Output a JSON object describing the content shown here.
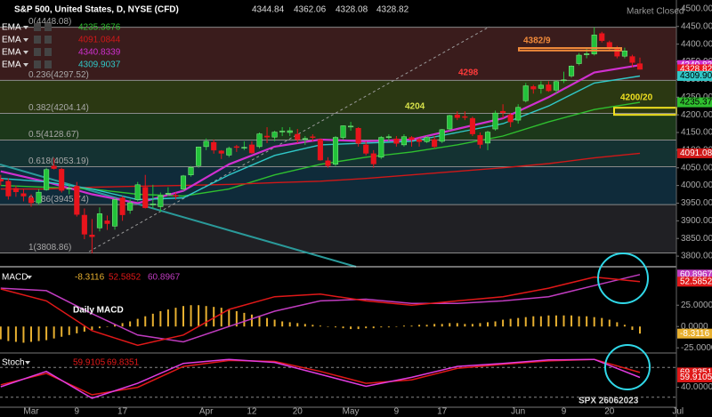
{
  "chart_data": [
    {
      "type": "candlestick",
      "title": "S&P 500, United States, D, NYSE (CFD)",
      "status": "Market Closed",
      "categories": [
        null,
        null,
        null,
        null,
        "Mar",
        null,
        null,
        null,
        null,
        null,
        "9",
        null,
        null,
        null,
        null,
        null,
        "17",
        null,
        null,
        null,
        null,
        null,
        null,
        null,
        null,
        null,
        null,
        "Apr",
        null,
        null,
        null,
        null,
        null,
        "12",
        null,
        null,
        null,
        null,
        null,
        "20",
        null,
        null,
        null,
        null,
        null,
        null,
        "May",
        null,
        null,
        null,
        null,
        null,
        "9",
        null,
        null,
        null,
        null,
        null,
        "17",
        null,
        null,
        null,
        null,
        null,
        null,
        null,
        null,
        null,
        "Jun",
        null,
        null,
        null,
        null,
        null,
        "9",
        null,
        null,
        null,
        null,
        null,
        "20",
        null,
        null,
        null,
        null,
        null,
        null,
        null,
        null,
        "Jul"
      ],
      "open": [
        4018,
        4012,
        3992,
        3977,
        3965,
        3951,
        3988,
        4055,
        4046,
        3990,
        3998,
        3916,
        3860,
        3880,
        3900,
        3885,
        3965,
        3930,
        3960,
        3995,
        3945,
        3940,
        3975,
        3972,
        3990,
        4030,
        4056,
        4110,
        4122,
        4098,
        4086,
        4110,
        4106,
        4115,
        4110,
        4140,
        4137,
        4152,
        4150,
        4145,
        4132,
        4138,
        4130,
        4070,
        4060,
        4136,
        4166,
        4162,
        4115,
        4090,
        4080,
        4136,
        4132,
        4115,
        4136,
        4130,
        4124,
        4130,
        4125,
        4160,
        4200,
        4195,
        4190,
        4142,
        4120,
        4160,
        4210,
        4200,
        4185,
        4240,
        4280,
        4275,
        4285,
        4270,
        4298,
        4310,
        4345,
        4370,
        4372,
        4430,
        4405,
        4390,
        4366,
        4365,
        4344.84,
        null,
        null,
        null,
        null,
        null
      ],
      "high": [
        4030,
        4020,
        4000,
        3990,
        3975,
        3990,
        4050,
        4078,
        4050,
        4005,
        4010,
        3935,
        3905,
        3938,
        3915,
        3965,
        3970,
        3960,
        4010,
        4030,
        4002,
        3980,
        3995,
        3980,
        4030,
        4055,
        4110,
        4133,
        4130,
        4100,
        4110,
        4115,
        4125,
        4125,
        4150,
        4165,
        4155,
        4165,
        4165,
        4160,
        4140,
        4145,
        4133,
        4080,
        4140,
        4170,
        4180,
        4165,
        4125,
        4100,
        4140,
        4145,
        4140,
        4145,
        4140,
        4135,
        4140,
        4140,
        4160,
        4200,
        4210,
        4210,
        4195,
        4150,
        4155,
        4212,
        4230,
        4205,
        4230,
        4290,
        4285,
        4295,
        4295,
        4298,
        4322,
        4340,
        4375,
        4390,
        4448,
        4435,
        4410,
        4395,
        4390,
        4370,
        4362.06,
        null,
        null,
        null,
        null,
        null
      ],
      "low": [
        4000,
        3960,
        3968,
        3955,
        3940,
        3945,
        3985,
        4045,
        3980,
        3975,
        3912,
        3848,
        3808,
        3870,
        3874,
        3875,
        3900,
        3920,
        3955,
        3935,
        3935,
        3925,
        3970,
        3960,
        3985,
        4025,
        4050,
        4100,
        4090,
        4075,
        4080,
        4095,
        4100,
        4090,
        4105,
        4120,
        4125,
        4140,
        4140,
        4120,
        4115,
        4125,
        4070,
        4050,
        4055,
        4130,
        4155,
        4110,
        4085,
        4050,
        4075,
        4125,
        4110,
        4110,
        4110,
        4110,
        4120,
        4105,
        4120,
        4155,
        4185,
        4185,
        4140,
        4105,
        4100,
        4155,
        4190,
        4165,
        4175,
        4235,
        4260,
        4260,
        4265,
        4260,
        4290,
        4305,
        4340,
        4360,
        4368,
        4405,
        4380,
        4360,
        4360,
        4335,
        4328.08,
        null,
        null,
        null,
        null,
        null
      ],
      "close": [
        4012,
        3970,
        3982,
        3970,
        3951,
        3981,
        4045,
        4048,
        3986,
        3992,
        3918,
        3862,
        3855,
        3920,
        3892,
        3960,
        3917,
        3951,
        4002,
        3937,
        3948,
        3971,
        3978,
        3971,
        4027,
        4051,
        4109,
        4125,
        4100,
        4091,
        4105,
        4109,
        4108,
        4092,
        4146,
        4137,
        4151,
        4154,
        4155,
        4130,
        4133,
        4137,
        4072,
        4056,
        4136,
        4169,
        4168,
        4119,
        4091,
        4061,
        4136,
        4138,
        4119,
        4138,
        4130,
        4124,
        4136,
        4110,
        4158,
        4198,
        4192,
        4193,
        4146,
        4116,
        4151,
        4205,
        4206,
        4180,
        4221,
        4282,
        4273,
        4284,
        4268,
        4294,
        4299,
        4338,
        4369,
        4373,
        4426,
        4410,
        4389,
        4366,
        4381,
        4348,
        4328.82,
        null,
        null,
        null,
        null,
        null
      ],
      "up_color": "#22c23a",
      "down_color": "#e8141c",
      "ylim": [
        3770,
        4525
      ],
      "yticks": [
        {
          "value": 4500,
          "label": "4500.00"
        },
        {
          "value": 4450,
          "label": "4450.00"
        },
        {
          "value": 4400,
          "label": "4400.00"
        },
        {
          "value": 4350,
          "label": "4350.00"
        },
        {
          "value": 4300,
          "label": "4300.00"
        },
        {
          "value": 4250,
          "label": "4250.00"
        },
        {
          "value": 4200,
          "label": "4200.00"
        },
        {
          "value": 4150,
          "label": "4150.00"
        },
        {
          "value": 4100,
          "label": "4100.00"
        },
        {
          "value": 4050,
          "label": "4050.00"
        },
        {
          "value": 4000,
          "label": "4000.00"
        },
        {
          "value": 3950,
          "label": "3950.00"
        },
        {
          "value": 3900,
          "label": "3900.00"
        },
        {
          "value": 3850,
          "label": "3850.00"
        },
        {
          "value": 3800,
          "label": "3800.00"
        }
      ],
      "series": [
        {
          "name": "EMA",
          "color": "#2fbf2f",
          "x": [
            0,
            6,
            12,
            18,
            24,
            30,
            36,
            42,
            48,
            54,
            60,
            66,
            72,
            78,
            84
          ],
          "values": [
            4000,
            3995,
            3990,
            3975,
            3970,
            3990,
            4030,
            4060,
            4080,
            4095,
            4115,
            4140,
            4180,
            4215,
            4235.3676
          ]
        },
        {
          "name": "EMA",
          "color": "#d01818",
          "x": [
            0,
            6,
            12,
            18,
            24,
            30,
            36,
            42,
            48,
            54,
            60,
            66,
            72,
            78,
            84
          ],
          "values": [
            3990,
            3990,
            3995,
            3998,
            4000,
            4003,
            4008,
            4012,
            4020,
            4030,
            4040,
            4050,
            4062,
            4078,
            4091.0844
          ]
        },
        {
          "name": "EMA",
          "color": "#d030d0",
          "x": [
            0,
            6,
            12,
            18,
            24,
            30,
            36,
            42,
            48,
            54,
            60,
            66,
            72,
            78,
            84
          ],
          "values": [
            4040,
            4010,
            3975,
            3950,
            3985,
            4060,
            4110,
            4130,
            4125,
            4130,
            4160,
            4190,
            4250,
            4320,
            4340.8339
          ]
        },
        {
          "name": "EMA",
          "color": "#30c8c8",
          "x": [
            0,
            6,
            12,
            18,
            24,
            30,
            36,
            42,
            48,
            54,
            60,
            66,
            72,
            78,
            84
          ],
          "values": [
            4020,
            4010,
            3990,
            3960,
            3965,
            4030,
            4085,
            4115,
            4120,
            4125,
            4150,
            4175,
            4225,
            4290,
            4309.9037
          ]
        }
      ],
      "fib": [
        {
          "label": "0(4448.08)",
          "value": 4448.08
        },
        {
          "label": "0.236(4297.52)",
          "value": 4297.52
        },
        {
          "label": "0.382(4204.14)",
          "value": 4204.14
        },
        {
          "label": "0.5(4128.67)",
          "value": 4128.67
        },
        {
          "label": "0.618(4053.19)",
          "value": 4053.19
        },
        {
          "label": "0.786(3945.74)",
          "value": 3945.74
        },
        {
          "label": "1(3808.86)",
          "value": 3808.86
        }
      ],
      "band_colors": [
        "#3a1c1c",
        "#2b3812",
        "#1c381a",
        "#143232",
        "#0f2b3a",
        "#202024"
      ],
      "zones": [
        {
          "label": "4382/9",
          "range": [
            4382,
            4389
          ],
          "color": "#f08a3a"
        },
        {
          "label": "4200/20",
          "range": [
            4200,
            4220
          ],
          "color": "#f0e020"
        }
      ],
      "annotations": [
        {
          "text": "4298",
          "color": "#ff3a3a"
        },
        {
          "text": "4204",
          "color": "#d8e24a"
        }
      ],
      "price_tags": [
        {
          "value": 4340.83,
          "label": "4340.83",
          "color": "#d030d0",
          "text_color": "#fff"
        },
        {
          "value": 4328.82,
          "label": "4328.82",
          "color": "#e8141c",
          "text_color": "#fff"
        },
        {
          "value": 4309.9,
          "label": "4309.90",
          "color": "#30c8c8",
          "text_color": "#000"
        },
        {
          "value": 4235.37,
          "label": "4235.37",
          "color": "#2fbf2f",
          "text_color": "#000"
        },
        {
          "value": 4091.08,
          "label": "4091.08",
          "color": "#d01818",
          "text_color": "#fff"
        }
      ]
    },
    {
      "type": "macd",
      "name": "MACD",
      "note": "Daily MACD",
      "x": [
        0,
        6,
        12,
        18,
        24,
        30,
        36,
        42,
        48,
        54,
        60,
        66,
        72,
        78,
        84
      ],
      "macd": {
        "color": "#e01818",
        "values": [
          44,
          30,
          -5,
          -22,
          -10,
          20,
          35,
          38,
          30,
          25,
          30,
          35,
          45,
          58,
          52.5852
        ]
      },
      "signal": {
        "color": "#c03cc0",
        "values": [
          45,
          42,
          15,
          -10,
          -18,
          0,
          18,
          30,
          32,
          27,
          27,
          30,
          35,
          48,
          60.8967
        ]
      },
      "histogram": {
        "color": "#e8b030",
        "values": [
          -15,
          -17,
          -18,
          -19,
          -18,
          -17,
          -16,
          -14,
          -12,
          -10,
          -8,
          -6,
          -4,
          -2,
          0,
          2,
          4,
          6,
          9,
          12,
          15,
          18,
          20,
          22,
          24,
          25,
          25,
          24,
          23,
          22,
          20,
          18,
          16,
          14,
          12,
          10,
          8,
          6,
          5,
          4,
          3,
          2,
          1,
          0,
          -1,
          -2,
          -3,
          -3,
          -2,
          -2,
          -1,
          -1,
          0,
          1,
          1,
          2,
          2,
          3,
          3,
          4,
          4,
          3,
          3,
          4,
          5,
          6,
          8,
          9,
          10,
          11,
          12,
          12,
          13,
          13,
          13,
          13,
          12,
          12,
          11,
          10,
          8,
          5,
          2,
          -4,
          -8.3116
        ]
      },
      "ylim": [
        -30,
        68
      ],
      "yticks": [
        {
          "value": 25,
          "label": "25.0000"
        },
        {
          "value": 0,
          "label": "0.0000"
        },
        {
          "value": -25,
          "label": "-25.0000"
        }
      ]
    },
    {
      "type": "stoch",
      "name": "Stoch",
      "x": [
        0,
        6,
        12,
        18,
        24,
        30,
        36,
        42,
        48,
        54,
        60,
        66,
        72,
        78,
        84
      ],
      "k": {
        "color": "#e03ce0",
        "values": [
          41,
          72,
          18,
          48,
          88,
          96,
          90,
          66,
          42,
          60,
          82,
          88,
          95,
          96,
          59.9105
        ]
      },
      "d": {
        "color": "#e01818",
        "values": [
          45,
          68,
          25,
          40,
          82,
          94,
          92,
          72,
          48,
          55,
          78,
          86,
          93,
          96,
          69.8351
        ]
      },
      "ylim": [
        0,
        100
      ],
      "yticks": [
        {
          "value": 40,
          "label": "40.0000"
        }
      ],
      "levels": [
        20,
        80
      ],
      "watermark": "SPX 26062023"
    }
  ]
}
